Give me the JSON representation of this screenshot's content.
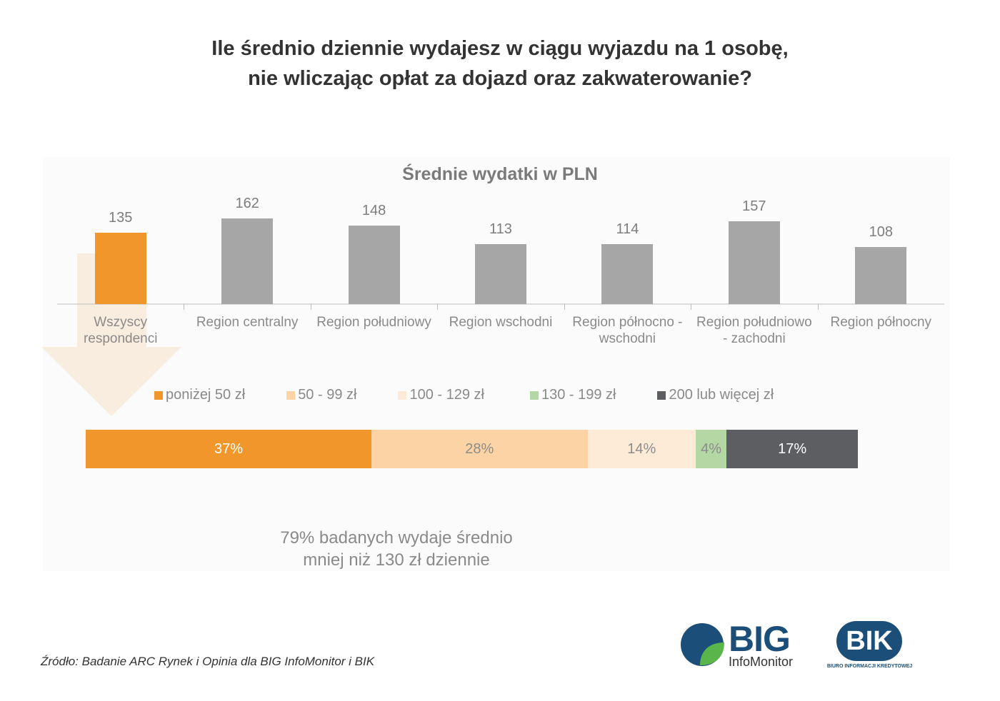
{
  "header": {
    "title": [
      "Ile średnio dziennie wydajesz w ciągu wyjazdu na 1 osobę,",
      "nie wliczając opłat za dojazd oraz zakwaterowanie?"
    ]
  },
  "chart_data": [
    {
      "type": "bar",
      "title": "Średnie wydatki w PLN",
      "categories": [
        "Wszyscy respondenci",
        "Region centralny",
        "Region południowy",
        "Region wschodni",
        "Region północno - wschodni",
        "Region południowo - zachodni",
        "Region północny"
      ],
      "values": [
        135,
        162,
        148,
        113,
        114,
        157,
        108
      ],
      "colors": [
        "#f0962a",
        "#a6a6a6",
        "#a6a6a6",
        "#a6a6a6",
        "#a6a6a6",
        "#a6a6a6",
        "#a6a6a6"
      ]
    },
    {
      "type": "stacked-bar",
      "orientation": "horizontal",
      "series": [
        {
          "name": "poniżej 50 zł",
          "color": "#f0962a",
          "label_color": "#ffffff",
          "values": [
            37
          ],
          "value_labels": [
            "37%"
          ]
        },
        {
          "name": "50 - 99 zł",
          "color": "#fbd3a5",
          "label_color": "#8c8c8c",
          "values": [
            28
          ],
          "value_labels": [
            "28%"
          ]
        },
        {
          "name": "100 - 129 zł",
          "color": "#fdebd8",
          "label_color": "#8c8c8c",
          "values": [
            14
          ],
          "value_labels": [
            "14%"
          ]
        },
        {
          "name": "130 - 199 zł",
          "color": "#b3d8a4",
          "label_color": "#8c8c8c",
          "values": [
            4
          ],
          "value_labels": [
            "4%"
          ]
        },
        {
          "name": "200 lub więcej zł",
          "color": "#5d5e61",
          "label_color": "#ffffff",
          "values": [
            17
          ],
          "value_labels": [
            "17%"
          ]
        }
      ]
    }
  ],
  "note": [
    "79% badanych wydaje średnio",
    "mniej niż 130 zł dziennie"
  ],
  "source": "Źródło: Badanie ARC Rynek i Opinia dla BIG InfoMonitor i BIK",
  "logos": {
    "big": "BIG",
    "big_sub": "InfoMonitor",
    "bik": "BIK",
    "bik_sub": "BIURO INFORMACJI KREDYTOWEJ"
  }
}
